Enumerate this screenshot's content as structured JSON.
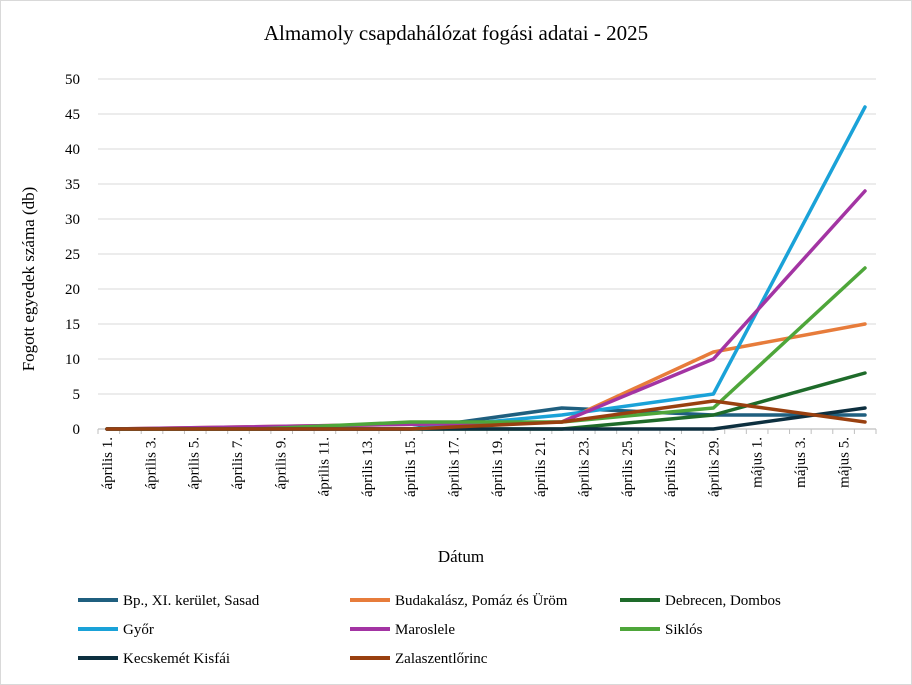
{
  "chart_data": {
    "type": "line",
    "title": "Almamoly csapdahálózat fogási adatai - 2025",
    "xlabel": "Dátum",
    "ylabel": "Fogott egyedek száma (db)",
    "ylim": [
      0,
      50
    ],
    "yticks": [
      0,
      5,
      10,
      15,
      20,
      25,
      30,
      35,
      40,
      45,
      50
    ],
    "x_start": "2025-04-01",
    "x_end": "2025-05-06",
    "xtick_labels": [
      "április 1.",
      "április 3.",
      "április 5.",
      "április 7.",
      "április 9.",
      "április 11.",
      "április 13.",
      "április 15.",
      "április 17.",
      "április 19.",
      "április 21.",
      "április 23.",
      "április 25.",
      "április 27.",
      "április 29.",
      "május 1.",
      "május 3.",
      "május 5."
    ],
    "grid": true,
    "legend_position": "bottom",
    "series": [
      {
        "name": "Bp., XI. kerület, Sasad",
        "color": "#1f5f7f",
        "points": [
          [
            "2025-04-01",
            0
          ],
          [
            "2025-04-15",
            0
          ],
          [
            "2025-04-22",
            3
          ],
          [
            "2025-04-29",
            2
          ],
          [
            "2025-05-06",
            2
          ]
        ]
      },
      {
        "name": "Budakalász, Pomáz és Üröm",
        "color": "#e77c3b",
        "points": [
          [
            "2025-04-01",
            0
          ],
          [
            "2025-04-22",
            1
          ],
          [
            "2025-04-29",
            11
          ],
          [
            "2025-05-06",
            15
          ]
        ]
      },
      {
        "name": "Debrecen, Dombos",
        "color": "#1e6b2a",
        "points": [
          [
            "2025-04-01",
            0
          ],
          [
            "2025-04-22",
            0
          ],
          [
            "2025-04-29",
            2
          ],
          [
            "2025-05-06",
            8
          ]
        ]
      },
      {
        "name": "Győr",
        "color": "#1aa2d8",
        "points": [
          [
            "2025-04-01",
            0
          ],
          [
            "2025-04-15",
            0
          ],
          [
            "2025-04-22",
            2
          ],
          [
            "2025-04-29",
            5
          ],
          [
            "2025-05-06",
            46
          ]
        ]
      },
      {
        "name": "Maroslele",
        "color": "#a334a3",
        "points": [
          [
            "2025-04-01",
            0
          ],
          [
            "2025-04-22",
            1
          ],
          [
            "2025-04-29",
            10
          ],
          [
            "2025-05-06",
            34
          ]
        ]
      },
      {
        "name": "Siklós",
        "color": "#4ea63a",
        "points": [
          [
            "2025-04-01",
            0
          ],
          [
            "2025-04-08",
            0
          ],
          [
            "2025-04-15",
            1
          ],
          [
            "2025-04-22",
            1
          ],
          [
            "2025-04-29",
            3
          ],
          [
            "2025-05-06",
            23
          ]
        ]
      },
      {
        "name": "Kecskemét Kisfái",
        "color": "#0d2f3f",
        "points": [
          [
            "2025-04-01",
            0
          ],
          [
            "2025-04-29",
            0
          ],
          [
            "2025-05-06",
            3
          ]
        ]
      },
      {
        "name": "Zalaszentlőrinc",
        "color": "#994010",
        "points": [
          [
            "2025-04-01",
            0
          ],
          [
            "2025-04-15",
            0
          ],
          [
            "2025-04-22",
            1
          ],
          [
            "2025-04-29",
            4
          ],
          [
            "2025-05-06",
            1
          ]
        ]
      }
    ]
  }
}
